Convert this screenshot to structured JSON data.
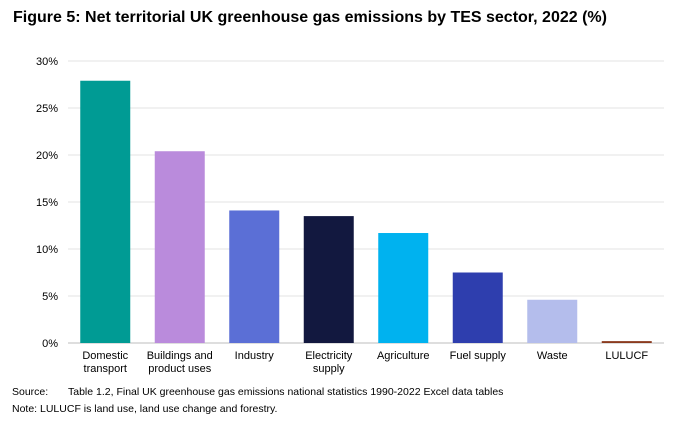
{
  "figure_title": "Figure 5: Net territorial UK greenhouse gas emissions by TES sector, 2022 (%)",
  "footer": {
    "source_label": "Source:",
    "source_text": "Table 1.2, Final UK greenhouse gas emissions national statistics 1990-2022 Excel data tables",
    "note_text": "Note: LULUCF is land use, land use change and forestry."
  },
  "chart_data": {
    "type": "bar",
    "title": "Figure 5: Net territorial UK greenhouse gas emissions by TES sector, 2022 (%)",
    "xlabel": "",
    "ylabel": "",
    "categories": [
      [
        "Domestic",
        "transport"
      ],
      [
        "Buildings and",
        "product uses"
      ],
      [
        "Industry"
      ],
      [
        "Electricity",
        "supply"
      ],
      [
        "Agriculture"
      ],
      [
        "Fuel supply"
      ],
      [
        "Waste"
      ],
      [
        "LULUCF"
      ]
    ],
    "values": [
      27.9,
      20.4,
      14.1,
      13.5,
      11.7,
      7.5,
      4.6,
      0.2
    ],
    "colors": [
      "#009B94",
      "#BA8BDC",
      "#5B6FD6",
      "#12183F",
      "#00B2EF",
      "#2E3EAE",
      "#B4BDEC",
      "#8B3A1E"
    ],
    "ylim": [
      0,
      30
    ],
    "yticks": [
      0,
      5,
      10,
      15,
      20,
      25,
      30
    ],
    "ytick_suffix": "%",
    "grid": true,
    "legend": "none"
  }
}
